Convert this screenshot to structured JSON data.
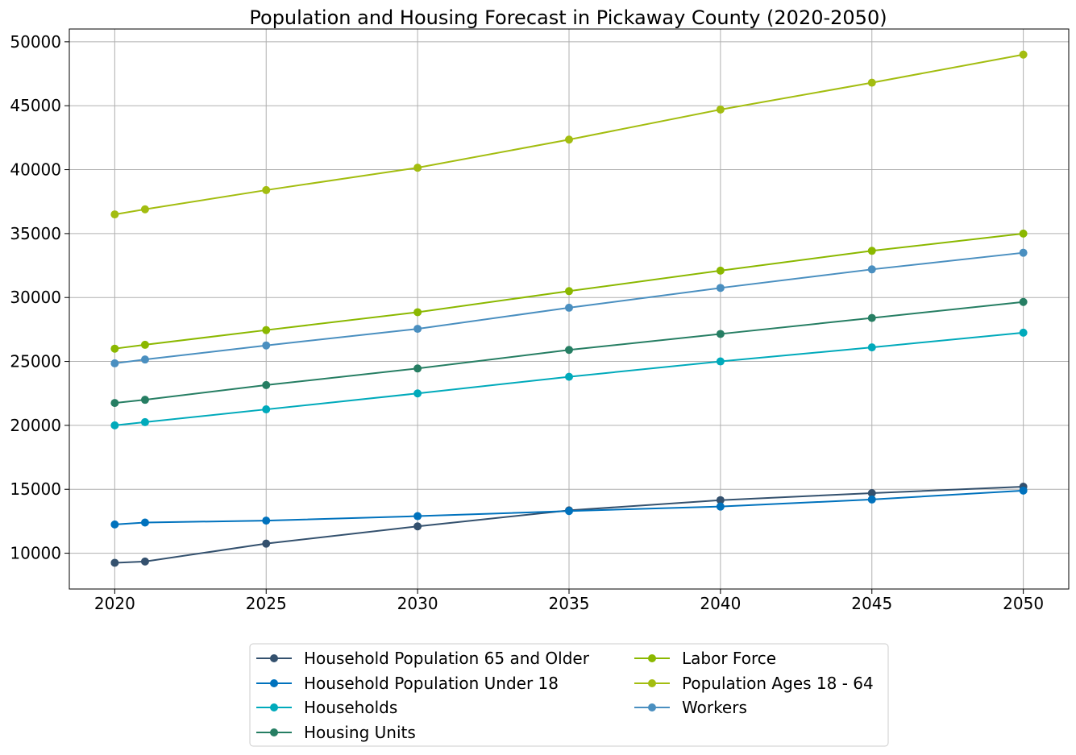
{
  "chart_data": {
    "type": "line",
    "title": "Population and Housing Forecast in Pickaway County (2020-2050)",
    "xlabel": "",
    "ylabel": "",
    "x": [
      2020,
      2021,
      2025,
      2030,
      2035,
      2040,
      2045,
      2050
    ],
    "x_ticks": [
      2020,
      2025,
      2030,
      2035,
      2040,
      2045,
      2050
    ],
    "y_ticks": [
      10000,
      15000,
      20000,
      25000,
      30000,
      35000,
      40000,
      45000,
      50000
    ],
    "xlim": [
      2018.5,
      2051.5
    ],
    "ylim": [
      7200,
      51000
    ],
    "grid": true,
    "legend_position": "bottom-center",
    "series": [
      {
        "name": "Household Population 65 and Older",
        "color": "#34516e",
        "values": [
          9250,
          9350,
          10750,
          12100,
          13350,
          14150,
          14700,
          15200
        ]
      },
      {
        "name": "Household Population Under 18",
        "color": "#0072bd",
        "values": [
          12250,
          12400,
          12550,
          12900,
          13300,
          13650,
          14200,
          14900
        ]
      },
      {
        "name": "Households",
        "color": "#00aabb",
        "values": [
          20000,
          20250,
          21250,
          22500,
          23800,
          25000,
          26100,
          27250
        ]
      },
      {
        "name": "Housing Units",
        "color": "#267e63",
        "values": [
          21750,
          22000,
          23150,
          24450,
          25900,
          27150,
          28400,
          29650
        ]
      },
      {
        "name": "Labor Force",
        "color": "#8bb800",
        "values": [
          26000,
          26300,
          27450,
          28850,
          30500,
          32100,
          33650,
          35000
        ]
      },
      {
        "name": "Population Ages 18 - 64",
        "color": "#a3bd10",
        "values": [
          36500,
          36900,
          38400,
          40150,
          42350,
          44700,
          46800,
          49000
        ]
      },
      {
        "name": "Workers",
        "color": "#4a8fc0",
        "values": [
          24850,
          25150,
          26250,
          27550,
          29200,
          30750,
          32200,
          33500
        ]
      }
    ]
  }
}
